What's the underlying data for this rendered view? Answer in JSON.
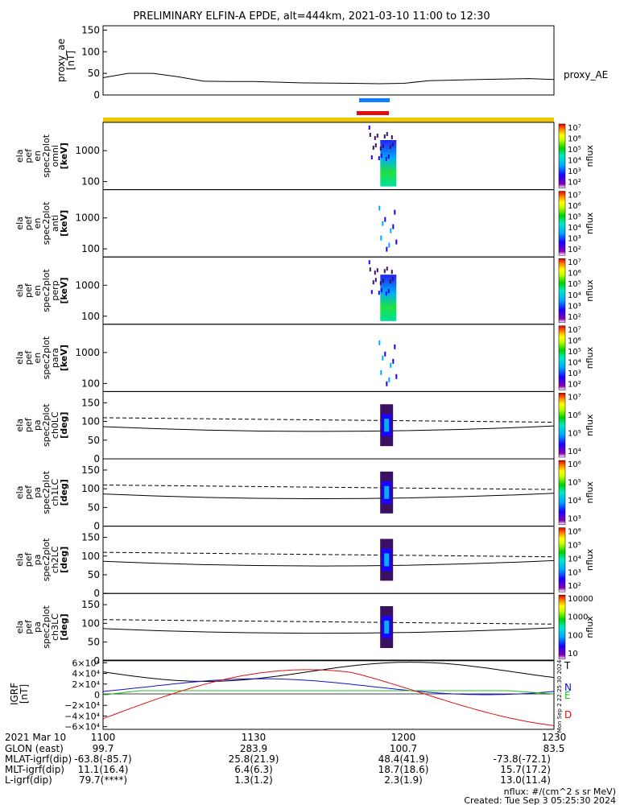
{
  "title": "PRELIMINARY ELFIN-A EPDE, alt=444km, 2021-03-10 11:00 to 12:30",
  "ae_panel": {
    "ylabel": [
      "proxy_ae",
      "[nT]"
    ],
    "ticks": [
      "150",
      "100",
      "50",
      "0"
    ],
    "legend": "proxy_AE"
  },
  "spec_panels": [
    {
      "ylabel": [
        "ela",
        "pef",
        "en",
        "spec2plot",
        "omni",
        "[keV]"
      ],
      "ticks": [
        "1000",
        "100"
      ],
      "cbar_title": "nflux",
      "cbar_ticks": [
        "10⁷",
        "10⁶",
        "10⁵",
        "10⁴",
        "10³",
        "10²"
      ]
    },
    {
      "ylabel": [
        "ela",
        "pef",
        "en",
        "spec2plot",
        "anti",
        "[keV]"
      ],
      "ticks": [
        "1000",
        "100"
      ],
      "cbar_title": "nflux",
      "cbar_ticks": [
        "10⁷",
        "10⁶",
        "10⁵",
        "10⁴",
        "10³",
        "10²"
      ]
    },
    {
      "ylabel": [
        "ela",
        "pef",
        "en",
        "spec2plot",
        "perp",
        "[keV]"
      ],
      "ticks": [
        "1000",
        "100"
      ],
      "cbar_title": "nflux",
      "cbar_ticks": [
        "10⁷",
        "10⁶",
        "10⁵",
        "10⁴",
        "10³",
        "10²"
      ]
    },
    {
      "ylabel": [
        "ela",
        "pef",
        "en",
        "spec2plot",
        "para",
        "[keV]"
      ],
      "ticks": [
        "1000",
        "100"
      ],
      "cbar_title": "nflux",
      "cbar_ticks": [
        "10⁷",
        "10⁶",
        "10⁵",
        "10⁴",
        "10³",
        "10²"
      ]
    },
    {
      "ylabel": [
        "ela",
        "pef",
        "pa",
        "spec2plot",
        "ch0LC",
        "[deg]"
      ],
      "ticks": [
        "150",
        "100",
        "50",
        "0"
      ],
      "cbar_title": "nflux",
      "cbar_ticks": [
        "10⁷",
        "10⁶",
        "10⁵",
        "10⁴"
      ]
    },
    {
      "ylabel": [
        "ela",
        "pef",
        "pa",
        "spec2plot",
        "ch1LC",
        "[deg]"
      ],
      "ticks": [
        "150",
        "100",
        "50",
        "0"
      ],
      "cbar_title": "nflux",
      "cbar_ticks": [
        "10⁶",
        "10⁵",
        "10⁴",
        "10³"
      ]
    },
    {
      "ylabel": [
        "ela",
        "pef",
        "pa",
        "spec2plot",
        "ch2LC",
        "[deg]"
      ],
      "ticks": [
        "150",
        "100",
        "50",
        "0"
      ],
      "cbar_title": "nflux",
      "cbar_ticks": [
        "10⁶",
        "10⁵",
        "10⁴",
        "10³",
        "10²"
      ]
    },
    {
      "ylabel": [
        "ela",
        "pef",
        "pa",
        "spec2plot",
        "ch3LC",
        "[deg]"
      ],
      "ticks": [
        "150",
        "100",
        "50",
        "0"
      ],
      "cbar_title": "nflux",
      "cbar_ticks": [
        "10000",
        "1000",
        "100",
        "10"
      ]
    }
  ],
  "igrf_panel": {
    "ylabel": [
      "IGRF",
      "[nT]"
    ],
    "ticks": [
      "6×10⁴",
      "4×10⁴",
      "2×10⁴",
      "0",
      "−2×10⁴",
      "−4×10⁴",
      "−6×10⁴"
    ],
    "legend": [
      "T",
      "N",
      "E",
      "D"
    ],
    "colors": {
      "T": "#000000",
      "N": "#1010d0",
      "E": "#20c020",
      "D": "#e01010"
    },
    "side_stamp": "Mon Sep  2 22:25:30 2024"
  },
  "footer": {
    "row_labels": [
      "2021 Mar 10",
      "GLON (east)",
      "MLAT-igrf(dip)",
      "MLT-igrf(dip)",
      "L-igrf(dip)"
    ],
    "columns": [
      {
        "time": "1100",
        "values": [
          "99.7",
          "-63.8(-85.7)",
          "11.1(16.4)",
          "79.7(****)"
        ]
      },
      {
        "time": "1130",
        "values": [
          "283.9",
          "25.8(21.9)",
          "6.4(6.3)",
          "1.3(1.2)"
        ]
      },
      {
        "time": "1200",
        "values": [
          "100.7",
          "48.4(41.9)",
          "18.7(18.6)",
          "2.3(1.9)"
        ]
      },
      {
        "time": "1230",
        "values": [
          "83.5",
          "-73.8(-72.1)",
          "15.7(17.2)",
          "13.0(11.4)"
        ]
      }
    ],
    "note1": "nflux: #/(cm^2 s sr MeV)",
    "note2": "Created: Tue Sep  3 05:25:30 2024"
  },
  "chart_data": {
    "type": "line",
    "x_time_range": [
      "11:00",
      "12:30"
    ],
    "series": [
      {
        "name": "proxy_AE",
        "x": [
          "11:00",
          "11:05",
          "11:10",
          "11:15",
          "11:20",
          "11:25",
          "11:30",
          "11:40",
          "11:50",
          "11:55",
          "12:00",
          "12:05",
          "12:15",
          "12:25",
          "12:30"
        ],
        "values": [
          40,
          50,
          50,
          42,
          32,
          31,
          31,
          28,
          27,
          26,
          27,
          33,
          36,
          38,
          36
        ]
      }
    ],
    "ae_ylim": [
      0,
      160
    ],
    "igrf_ylim": [
      -65000,
      65000
    ],
    "spectrogram_time_window": [
      "11:53",
      "11:59"
    ],
    "colors": {
      "colorbar": [
        "#ffffff",
        "#7b00b0",
        "#2000ff",
        "#00a0ff",
        "#00e0c0",
        "#00d000",
        "#c0ff00",
        "#ffff00",
        "#ff8000",
        "#ff0000"
      ],
      "orbit_bar": "#f0c800",
      "blue_bar": "#1080ff",
      "red_bar": "#e01010"
    }
  }
}
